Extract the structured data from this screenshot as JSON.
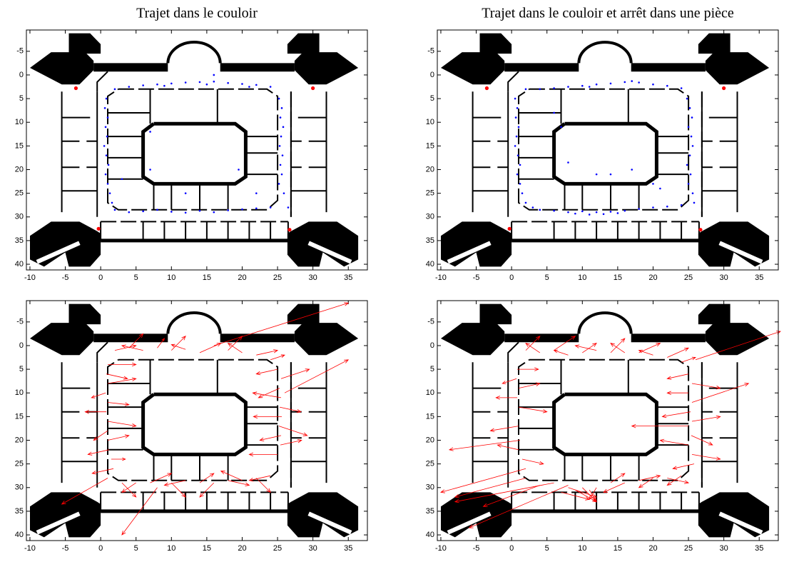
{
  "chart_data": [
    {
      "type": "scatter",
      "title": "Trajet dans le couloir",
      "y_reversed": true,
      "xlim": [
        -10.5,
        37.7
      ],
      "ylim": [
        -9.5,
        41.2
      ],
      "xticks": [
        -10,
        -5,
        0,
        5,
        10,
        15,
        20,
        25,
        30,
        35
      ],
      "yticks": [
        -5,
        0,
        5,
        10,
        15,
        20,
        25,
        30,
        35,
        40
      ],
      "series": [
        {
          "color": "#0000ff",
          "x": [
            2,
            4,
            6,
            8,
            10,
            12,
            14,
            16,
            18,
            20,
            22,
            24,
            9,
            15,
            21,
            16,
            0.8,
            0.6,
            1,
            0.7,
            0.9,
            0.5,
            0.8,
            1.1,
            0.7,
            1,
            1.3,
            1.6,
            2,
            25.2,
            25.6,
            25.4,
            25.8,
            25.5,
            25.3,
            25.7,
            25.4,
            25.6,
            25.2,
            25.9,
            26.5,
            4,
            6,
            8,
            10,
            12,
            14,
            16,
            18,
            20,
            22,
            24,
            7,
            7,
            19.5,
            22,
            3,
            12
          ],
          "y": [
            3,
            2.5,
            2.2,
            2,
            1.8,
            1.6,
            1.5,
            1.4,
            1.7,
            1.9,
            2.1,
            2.5,
            2.3,
            2,
            2.5,
            0,
            5,
            7,
            9,
            11,
            13,
            15,
            17,
            19,
            21,
            23,
            25,
            27,
            28.5,
            5,
            7,
            9,
            11,
            13,
            15,
            17,
            19,
            21,
            23,
            25,
            28,
            29,
            28.8,
            28.5,
            28.9,
            29.1,
            28.7,
            29,
            28.6,
            28.4,
            28.2,
            28,
            12,
            20,
            20,
            25,
            22,
            25
          ]
        },
        {
          "color": "#ff0000",
          "x": [
            -3.5,
            30,
            -0.3,
            26.7
          ],
          "y": [
            2.8,
            2.8,
            32.5,
            32.7
          ]
        }
      ]
    },
    {
      "type": "scatter",
      "title": "Trajet dans le couloir et arrêt dans une pièce",
      "y_reversed": true,
      "xlim": [
        -10.5,
        37.7
      ],
      "ylim": [
        -9.5,
        41.2
      ],
      "xticks": [
        -10,
        -5,
        0,
        5,
        10,
        15,
        20,
        25,
        30,
        35
      ],
      "yticks": [
        -5,
        0,
        5,
        10,
        15,
        20,
        25,
        30,
        35,
        40
      ],
      "series": [
        {
          "color": "#0000ff",
          "x": [
            2,
            4,
            6,
            8,
            10,
            12,
            14,
            16,
            18,
            20,
            22,
            24,
            11,
            17,
            0.5,
            0.8,
            0.6,
            1,
            0.7,
            0.5,
            0.9,
            1.2,
            0.8,
            1.2,
            1.5,
            2,
            3,
            24.8,
            25.2,
            25.5,
            25,
            25.4,
            25.6,
            25.2,
            24.8,
            25.3,
            25,
            25.6,
            25.8,
            4,
            6,
            8,
            9,
            10,
            11,
            12,
            13,
            14,
            15,
            16,
            18,
            20,
            22,
            24,
            6,
            7,
            12,
            14,
            17,
            20,
            8,
            21
          ],
          "y": [
            3,
            3,
            2.8,
            2.5,
            2.3,
            2,
            1.8,
            1.5,
            1.6,
            2,
            2.3,
            2.8,
            2.5,
            1.3,
            5,
            7,
            9,
            11,
            13,
            15,
            17,
            19,
            21,
            23,
            25,
            27,
            28,
            5,
            7,
            9,
            11,
            13,
            15,
            17,
            19,
            21,
            23,
            25,
            27,
            28.5,
            28.7,
            29,
            29.3,
            28.8,
            29.5,
            29,
            29.4,
            28.9,
            29.2,
            28.7,
            28.3,
            28,
            27.8,
            27.5,
            8,
            11,
            21,
            21,
            20,
            23,
            18.5,
            24
          ]
        },
        {
          "color": "#ff0000",
          "x": [
            -3.5,
            30,
            -0.3,
            26.7
          ],
          "y": [
            2.8,
            2.8,
            32.5,
            32.7
          ]
        }
      ]
    },
    {
      "type": "quiver",
      "y_reversed": true,
      "xlim": [
        -10.5,
        37.7
      ],
      "ylim": [
        -9.5,
        41.2
      ],
      "xticks": [
        -10,
        -5,
        0,
        5,
        10,
        15,
        20,
        25,
        30,
        35
      ],
      "yticks": [
        -5,
        0,
        5,
        10,
        15,
        20,
        25,
        30,
        35,
        40
      ],
      "series": [
        {
          "color": "#ff0000",
          "x": [
            16,
            2,
            4,
            6,
            8,
            10,
            12,
            14,
            18,
            20,
            22,
            24,
            1,
            0.8,
            1,
            0.7,
            1,
            0.8,
            1,
            1,
            1,
            1.2,
            1.5,
            1.8,
            1,
            25,
            25.5,
            25.3,
            25.5,
            25.3,
            25.6,
            25.2,
            25.5,
            25.4,
            25,
            26,
            3,
            5,
            7,
            8,
            10,
            12,
            14,
            16,
            18,
            20,
            22,
            24
          ],
          "y": [
            0,
            1,
            0.5,
            1,
            0.5,
            1,
            0.8,
            1.5,
            1,
            1.5,
            2,
            3,
            4,
            6,
            8,
            10,
            12,
            14,
            16,
            18,
            20,
            22,
            24,
            26,
            28,
            5,
            7,
            9,
            11,
            13,
            15,
            17,
            19,
            21,
            23,
            10,
            29,
            29,
            29,
            30,
            29,
            28.5,
            29,
            29,
            28.5,
            28.5,
            28,
            27.5
          ],
          "u": [
            19,
            3,
            2,
            -3,
            1,
            2,
            -2,
            3,
            2,
            -2,
            3,
            2,
            4,
            3,
            4,
            -2,
            3,
            -3,
            4,
            -2,
            3,
            -3,
            2,
            -3,
            -6.5,
            -3,
            4,
            -3,
            -4,
            3,
            -4,
            4,
            -3,
            3,
            -4,
            9,
            2,
            -2,
            3,
            -5,
            2,
            -3,
            2,
            -2,
            3,
            -3,
            2,
            -3
          ],
          "v": [
            -9,
            -1,
            -3,
            -1,
            -2,
            -3,
            -1,
            -2,
            -3,
            -2,
            -1,
            -1,
            0,
            1,
            -1,
            1,
            0.5,
            0,
            1,
            2,
            -1,
            1,
            0,
            1,
            5.5,
            1,
            -2,
            2,
            -1,
            1,
            0,
            2,
            1,
            -1,
            0,
            -7,
            3,
            2,
            -2,
            10,
            3,
            1,
            -2,
            3,
            1,
            -2,
            3,
            1
          ]
        }
      ]
    },
    {
      "type": "quiver",
      "y_reversed": true,
      "xlim": [
        -10.5,
        37.7
      ],
      "ylim": [
        -9.5,
        41.2
      ],
      "xticks": [
        -10,
        -5,
        0,
        5,
        10,
        15,
        20,
        25,
        30,
        35
      ],
      "yticks": [
        -5,
        0,
        5,
        10,
        15,
        20,
        25,
        30,
        35,
        40
      ],
      "series": [
        {
          "color": "#ff0000",
          "x": [
            2,
            4,
            6,
            8,
            10,
            12,
            14,
            16,
            18,
            20,
            22,
            24,
            26,
            0.8,
            0.7,
            1,
            0.8,
            1,
            1,
            1.2,
            1,
            1.5,
            2,
            2,
            25,
            25.5,
            25,
            25.5,
            25.3,
            25.5,
            25,
            25.4,
            25,
            25.5,
            25.8,
            8,
            9,
            10,
            11,
            7,
            12,
            8,
            6,
            4,
            14,
            16,
            18,
            20,
            22,
            24
          ],
          "y": [
            1,
            1.5,
            1,
            2,
            1.5,
            1,
            1.5,
            1.5,
            1.5,
            2,
            2.5,
            3.5,
            3,
            5,
            7,
            9,
            11,
            13,
            17,
            20,
            22,
            24,
            26,
            28,
            6,
            8,
            10,
            12,
            14,
            16,
            17,
            19,
            21,
            23,
            25,
            30,
            30.5,
            30,
            30.5,
            31,
            30,
            29.5,
            29,
            29.5,
            29,
            29,
            28.5,
            28,
            28,
            27.5
          ],
          "u": [
            2,
            -2,
            3,
            -2,
            2,
            -3,
            2,
            -2,
            3,
            -2,
            3,
            2,
            12,
            3,
            -2,
            3,
            -3,
            4,
            -4,
            -10,
            -3,
            3,
            -12,
            -10,
            -3,
            4,
            -3,
            8,
            -4,
            4,
            -8,
            3,
            -4,
            4,
            -3,
            4,
            3,
            2,
            1,
            4,
            -1,
            -14,
            -14,
            -8,
            2,
            -3,
            3,
            -2,
            3,
            -2
          ],
          "v": [
            -3,
            -2,
            -3,
            -1,
            -2,
            -1,
            -3,
            -2,
            -2,
            -1,
            -2,
            -1,
            -6,
            0,
            1,
            -1,
            0,
            1,
            1,
            2,
            -1,
            1,
            5,
            4,
            1,
            1,
            0,
            -4,
            1,
            -1,
            0,
            2,
            -1,
            1,
            1,
            2,
            2.5,
            3,
            2.5,
            1.5,
            2.5,
            9,
            4,
            4.5,
            -2,
            2,
            -1,
            2,
            1,
            2
          ]
        }
      ]
    }
  ]
}
